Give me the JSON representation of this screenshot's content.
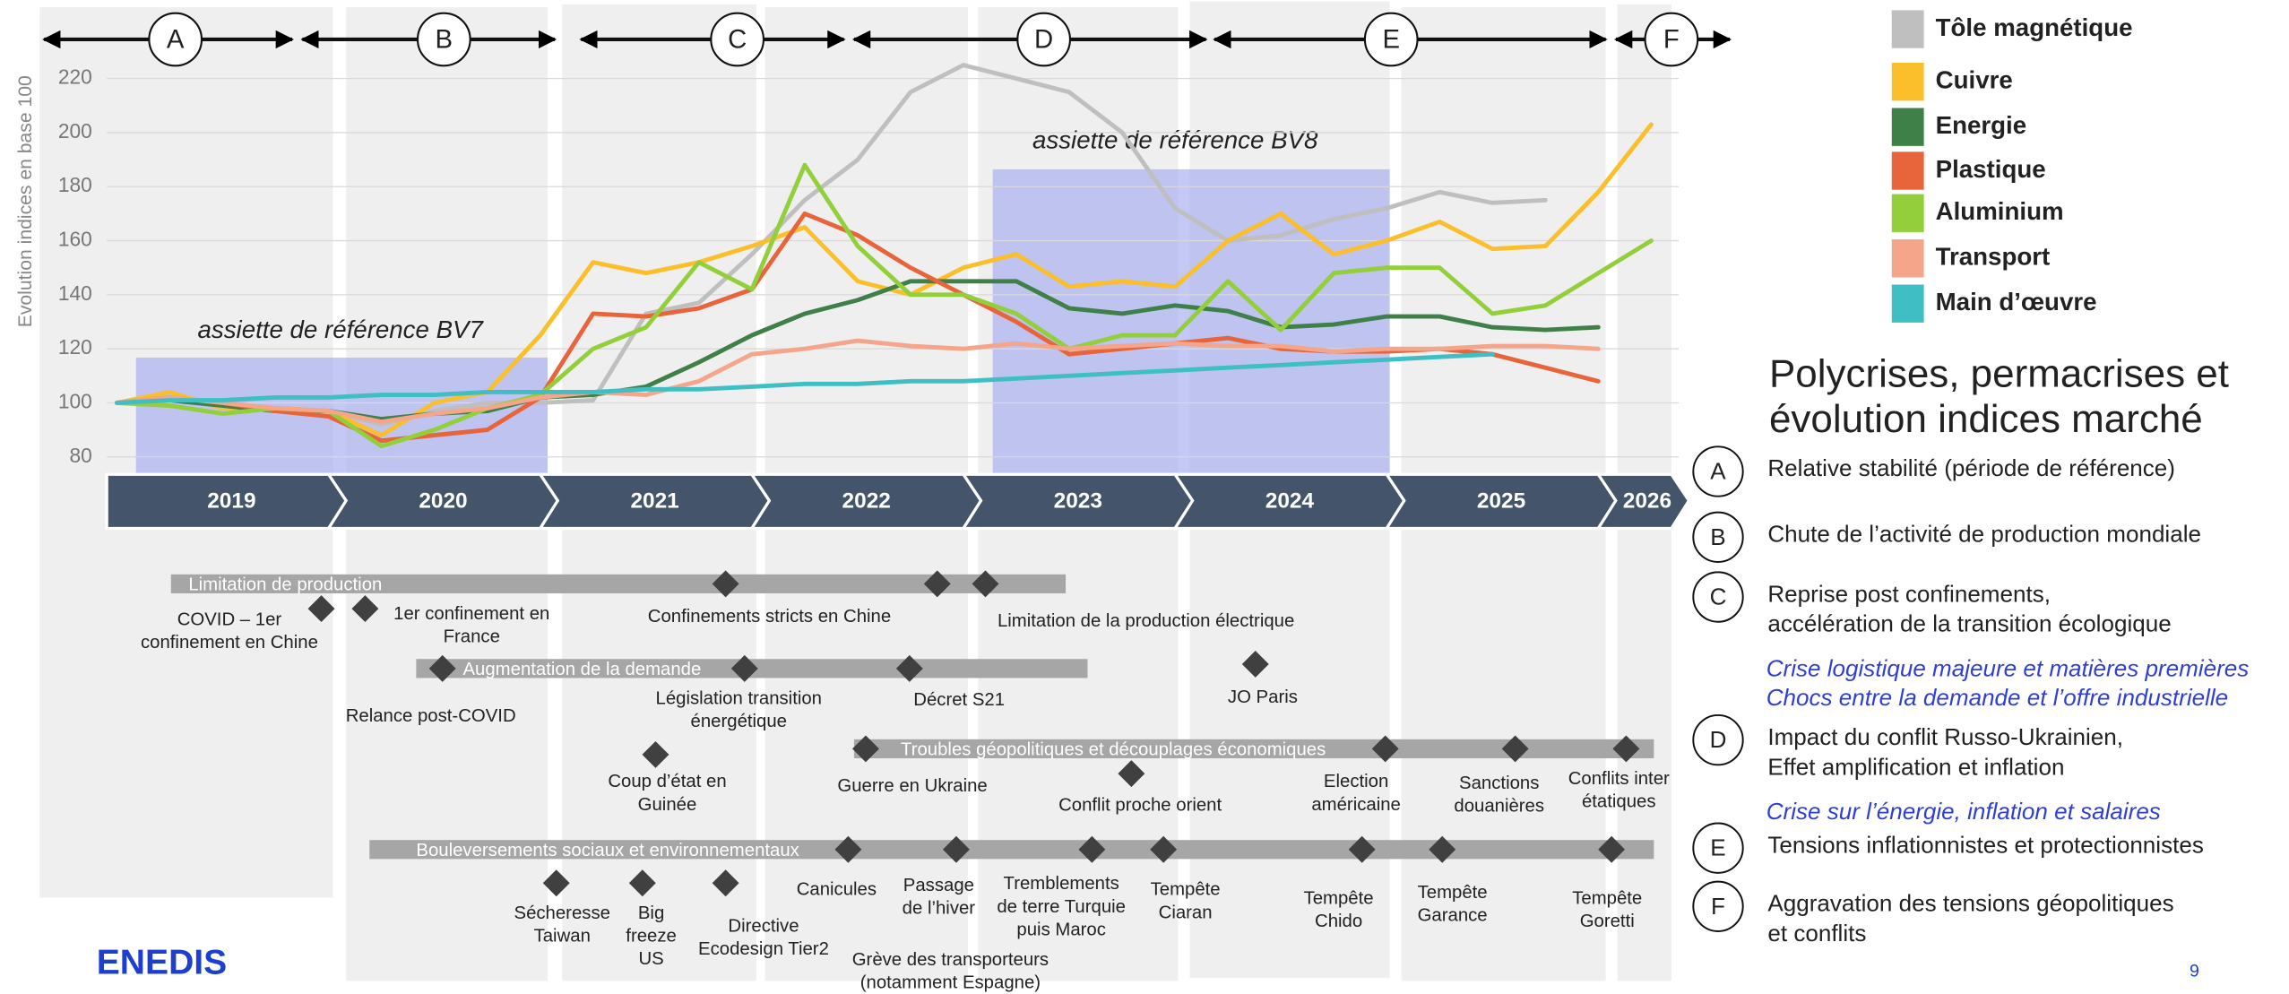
{
  "chart_data": {
    "type": "line",
    "y_label": "Evolution indices en base 100",
    "x": [
      2019,
      2019.25,
      2019.5,
      2019.75,
      2020,
      2020.25,
      2020.5,
      2020.75,
      2021,
      2021.25,
      2021.5,
      2021.75,
      2022,
      2022.25,
      2022.5,
      2022.75,
      2023,
      2023.25,
      2023.5,
      2023.75,
      2024,
      2024.25,
      2024.5,
      2024.75,
      2025,
      2025.25,
      2025.5,
      2025.75,
      2026,
      2026.25
    ],
    "xlim": [
      2019,
      2026.38
    ],
    "xticks": [
      2019,
      2020,
      2021,
      2022,
      2023,
      2024,
      2025,
      2026
    ],
    "ylim": [
      73,
      228
    ],
    "yticks": [
      80,
      100,
      120,
      140,
      160,
      180,
      200,
      220
    ],
    "grid": true,
    "legend": "right",
    "series": [
      {
        "name": "Tôle magnétique",
        "color": "#bfbfbf",
        "values": [
          100,
          101,
          100,
          98,
          97,
          92,
          97,
          100,
          100,
          101,
          133,
          137,
          155,
          175,
          190,
          215,
          225,
          220,
          215,
          200,
          172,
          160,
          162,
          168,
          172,
          178,
          174,
          175,
          null,
          null
        ]
      },
      {
        "name": "Cuivre",
        "color": "#fbbf2c",
        "values": [
          100,
          104,
          98,
          98,
          97,
          88,
          100,
          104,
          125,
          152,
          148,
          152,
          158,
          165,
          145,
          140,
          150,
          155,
          143,
          145,
          143,
          160,
          170,
          155,
          160,
          167,
          157,
          158,
          178,
          203
        ]
      },
      {
        "name": "Energie",
        "color": "#3f8048",
        "values": [
          100,
          101,
          99,
          97,
          97,
          94,
          96,
          97,
          102,
          103,
          106,
          115,
          125,
          133,
          138,
          145,
          145,
          145,
          135,
          133,
          136,
          134,
          128,
          129,
          132,
          132,
          128,
          127,
          128,
          null
        ]
      },
      {
        "name": "Plastique",
        "color": "#e8643a",
        "values": [
          100,
          102,
          100,
          97,
          95,
          86,
          88,
          90,
          102,
          133,
          132,
          135,
          142,
          170,
          162,
          150,
          140,
          130,
          118,
          120,
          122,
          124,
          120,
          119,
          119,
          120,
          118,
          113,
          108,
          null
        ]
      },
      {
        "name": "Aluminium",
        "color": "#92cf3a",
        "values": [
          100,
          99,
          96,
          98,
          97,
          84,
          90,
          98,
          103,
          120,
          128,
          152,
          142,
          188,
          158,
          140,
          140,
          133,
          120,
          125,
          125,
          145,
          127,
          148,
          150,
          150,
          133,
          136,
          148,
          160
        ]
      },
      {
        "name": "Transport",
        "color": "#f4a58a",
        "values": [
          100,
          102,
          100,
          98,
          97,
          93,
          96,
          98,
          102,
          104,
          103,
          108,
          118,
          120,
          123,
          121,
          120,
          122,
          120,
          121,
          122,
          121,
          121,
          119,
          120,
          120,
          121,
          121,
          120,
          null
        ]
      },
      {
        "name": "Main d’œuvre",
        "color": "#3fbfc4",
        "values": [
          100,
          101,
          101,
          102,
          102,
          103,
          103,
          104,
          104,
          104,
          105,
          105,
          106,
          107,
          107,
          108,
          108,
          109,
          110,
          111,
          112,
          113,
          114,
          115,
          116,
          117,
          118,
          null,
          null,
          null
        ]
      }
    ],
    "annotations": [
      "assiette de référence BV7",
      "assiette de référence BV8"
    ]
  },
  "phases": [
    "A",
    "B",
    "C",
    "D",
    "E",
    "F"
  ],
  "timeline": {
    "bars": [
      "Limitation de production",
      "Augmentation de la demande",
      "Troubles géopolitiques et découplages économiques",
      "Bouleversements sociaux et environnementaux"
    ],
    "events": [
      {
        "lines": [
          "COVID – 1er",
          "confinement en Chine"
        ]
      },
      {
        "lines": [
          "1er confinement en",
          "France"
        ]
      },
      {
        "lines": [
          "Confinements stricts en Chine"
        ]
      },
      {
        "lines": [
          "Limitation de la production électrique"
        ]
      },
      {
        "lines": [
          "Relance post-COVID"
        ]
      },
      {
        "lines": [
          "Législation transition",
          "énergétique"
        ]
      },
      {
        "lines": [
          "Décret S21"
        ]
      },
      {
        "lines": [
          "JO Paris"
        ]
      },
      {
        "lines": [
          "Coup d’état en",
          "Guinée"
        ]
      },
      {
        "lines": [
          "Guerre en Ukraine"
        ]
      },
      {
        "lines": [
          "Conflit proche orient"
        ]
      },
      {
        "lines": [
          "Election",
          "américaine"
        ]
      },
      {
        "lines": [
          "Sanctions",
          "douanières"
        ]
      },
      {
        "lines": [
          "Conflits inter",
          "étatiques"
        ]
      },
      {
        "lines": [
          "Sécheresse",
          "Taiwan"
        ]
      },
      {
        "lines": [
          "Big",
          "freeze",
          "US"
        ]
      },
      {
        "lines": [
          "Directive",
          "Ecodesign Tier2"
        ]
      },
      {
        "lines": [
          "Canicules"
        ]
      },
      {
        "lines": [
          "Passage",
          "de l’hiver"
        ]
      },
      {
        "lines": [
          "Tremblements",
          "de terre Turquie",
          "puis Maroc"
        ]
      },
      {
        "lines": [
          "Tempête",
          "Ciaran"
        ]
      },
      {
        "lines": [
          "Grève des transporteurs",
          "(notamment Espagne)"
        ]
      },
      {
        "lines": [
          "Tempête",
          "Chido"
        ]
      },
      {
        "lines": [
          "Tempête",
          "Garance"
        ]
      },
      {
        "lines": [
          "Tempête",
          "Goretti"
        ]
      }
    ]
  },
  "sidebar": {
    "title": [
      "Polycrises, permacrises et",
      "évolution indices marché"
    ],
    "items": [
      {
        "letter": "A",
        "lines": [
          "Relative stabilité (période de référence)"
        ]
      },
      {
        "letter": "B",
        "lines": [
          "Chute de l’activité de production mondiale"
        ]
      },
      {
        "letter": "C",
        "lines": [
          "Reprise post confinements,",
          " accélération de la transition écologique"
        ]
      },
      {
        "letter": "D",
        "lines": [
          "Impact du conflit Russo-Ukrainien,",
          "Effet amplification et inflation"
        ]
      },
      {
        "letter": "E",
        "lines": [
          "Tensions inflationnistes et protectionnistes"
        ]
      },
      {
        "letter": "F",
        "lines": [
          "Aggravation des tensions géopolitiques",
          "et conflits"
        ]
      }
    ],
    "notes": [
      "Crise logistique majeure et matières premières",
      "Chocs entre la demande et l’offre industrielle",
      "Crise sur l’énergie, inflation et salaires"
    ]
  },
  "logo": "ENEDIS",
  "page": "9"
}
